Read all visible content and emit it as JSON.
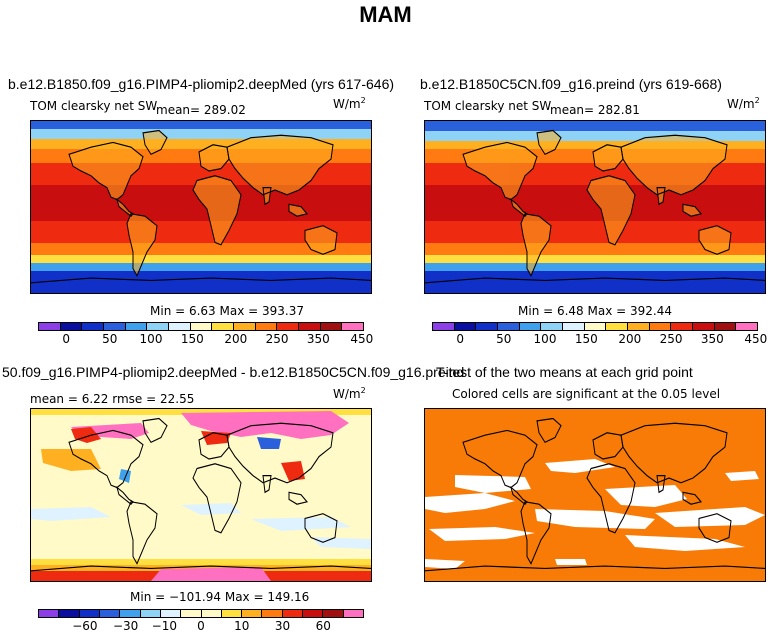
{
  "page": {
    "title": "MAM"
  },
  "panels": [
    {
      "title": "b.e12.B1850.f09_g16.PIMP4-pliomip2.deepMed (yrs 617-646)",
      "left_label": "TOM clearsky net SW",
      "center_label": "mean=  289.02",
      "units_base": "W/m",
      "units_exp": "2",
      "minmax": "Min =    6.63  Max =  393.37"
    },
    {
      "title": "b.e12.B1850C5CN.f09_g16.preind (yrs 619-668)",
      "left_label": "TOM clearsky net SW",
      "center_label": "mean=  282.81",
      "units_base": "W/m",
      "units_exp": "2",
      "minmax": "Min =    6.48  Max =  392.44"
    },
    {
      "title": "50.f09_g16.PIMP4-pliomip2.deepMed - b.e12.B1850C5CN.f09_g16.preind",
      "left_label": "mean =    6.22      rmse =   22.55",
      "units_base": "W/m",
      "units_exp": "2",
      "minmax": "Min = −101.94  Max =  149.16"
    },
    {
      "title": "T-test of the two means at each grid point",
      "left_label": "Colored cells are significant at the 0.05 level"
    }
  ],
  "colorbars": {
    "absolute": {
      "colors": [
        "#8c3fe6",
        "#0a0fa0",
        "#1030c8",
        "#2a60dc",
        "#3fa0ec",
        "#8ed2f6",
        "#dff2ff",
        "#fffac8",
        "#ffe040",
        "#ffb020",
        "#ff7a10",
        "#ee2a10",
        "#c80e0e",
        "#a01010",
        "#ff70c0"
      ],
      "tick_labels": [
        "0",
        "50",
        "100",
        "150",
        "200",
        "250",
        "350",
        "450"
      ]
    },
    "difference": {
      "colors": [
        "#8c3fe6",
        "#0a0fa0",
        "#1030c8",
        "#2a60dc",
        "#3fa0ec",
        "#8ed2f6",
        "#dff2ff",
        "#fffac8",
        "#fffac8",
        "#ffe040",
        "#ffb020",
        "#ff7a10",
        "#ee2a10",
        "#c80e0e",
        "#a01010",
        "#ff70c0"
      ],
      "tick_labels": [
        "−60",
        "−30",
        "−10",
        "0",
        "10",
        "30",
        "60"
      ]
    }
  },
  "chart_data": [
    {
      "type": "heatmap",
      "title": "b.e12.B1850.f09_g16.PIMP4-pliomip2.deepMed (yrs 617-646)",
      "variable": "TOM clearsky net SW",
      "units": "W/m2",
      "mean": 289.02,
      "min": 6.63,
      "max": 393.37,
      "colorbar_ticks": [
        0,
        50,
        100,
        150,
        200,
        250,
        350,
        450
      ]
    },
    {
      "type": "heatmap",
      "title": "b.e12.B1850C5CN.f09_g16.preind (yrs 619-668)",
      "variable": "TOM clearsky net SW",
      "units": "W/m2",
      "mean": 282.81,
      "min": 6.48,
      "max": 392.44,
      "colorbar_ticks": [
        0,
        50,
        100,
        150,
        200,
        250,
        350,
        450
      ]
    },
    {
      "type": "heatmap",
      "title": "50.f09_g16.PIMP4-pliomip2.deepMed - b.e12.B1850C5CN.f09_g16.preind",
      "units": "W/m2",
      "mean": 6.22,
      "rmse": 22.55,
      "min": -101.94,
      "max": 149.16,
      "colorbar_ticks": [
        -60,
        -30,
        -10,
        0,
        10,
        30,
        60
      ]
    },
    {
      "type": "heatmap",
      "title": "T-test of the two means at each grid point",
      "note": "Colored cells are significant at the 0.05 level"
    }
  ]
}
